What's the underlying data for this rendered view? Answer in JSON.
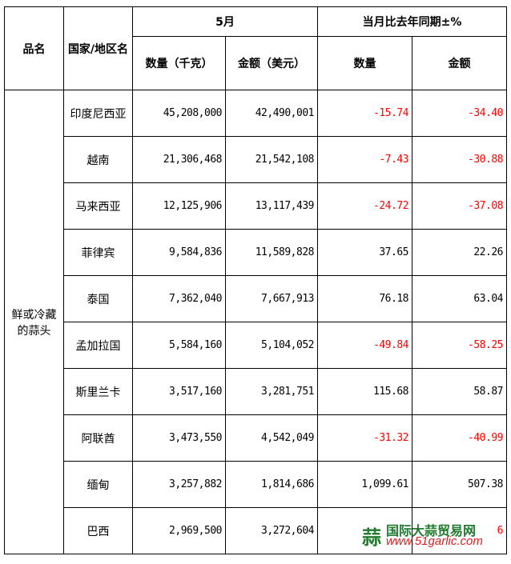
{
  "header": {
    "product": "品名",
    "country": "国家/地区名",
    "month": "5月",
    "yoy": "当月比去年同期±%",
    "qty": "数量（千克）",
    "amt": "金额（美元）",
    "yoy_qty": "数量",
    "yoy_amt": "金额"
  },
  "product_name": "鲜或冷藏的蒜头",
  "rows": [
    {
      "country": "印度尼西亚",
      "qty": "45,208,000",
      "amt": "42,490,001",
      "yoy_qty": "-15.74",
      "yoy_amt": "-34.40"
    },
    {
      "country": "越南",
      "qty": "21,306,468",
      "amt": "21,542,108",
      "yoy_qty": "-7.43",
      "yoy_amt": "-30.88"
    },
    {
      "country": "马来西亚",
      "qty": "12,125,906",
      "amt": "13,117,439",
      "yoy_qty": "-24.72",
      "yoy_amt": "-37.08"
    },
    {
      "country": "菲律宾",
      "qty": "9,584,836",
      "amt": "11,589,828",
      "yoy_qty": "37.65",
      "yoy_amt": "22.26"
    },
    {
      "country": "泰国",
      "qty": "7,362,040",
      "amt": "7,667,913",
      "yoy_qty": "76.18",
      "yoy_amt": "63.04"
    },
    {
      "country": "孟加拉国",
      "qty": "5,584,160",
      "amt": "5,104,052",
      "yoy_qty": "-49.84",
      "yoy_amt": "-58.25"
    },
    {
      "country": "斯里兰卡",
      "qty": "3,517,160",
      "amt": "3,281,751",
      "yoy_qty": "115.68",
      "yoy_amt": "58.87"
    },
    {
      "country": "阿联酋",
      "qty": "3,473,550",
      "amt": "4,542,049",
      "yoy_qty": "-31.32",
      "yoy_amt": "-40.99"
    },
    {
      "country": "缅甸",
      "qty": "3,257,882",
      "amt": "1,814,686",
      "yoy_qty": "1,099.61",
      "yoy_amt": "507.38"
    },
    {
      "country": "巴西",
      "qty": "2,969,500",
      "amt": "3,272,604",
      "yoy_qty": "",
      "yoy_amt": "6"
    }
  ],
  "watermark": {
    "name": "国际大蒜贸易网",
    "url": "www.51garlic.com"
  },
  "colors": {
    "negative": "#ff0000",
    "watermark_green": "#1f7a2e",
    "watermark_red": "#e02020"
  }
}
